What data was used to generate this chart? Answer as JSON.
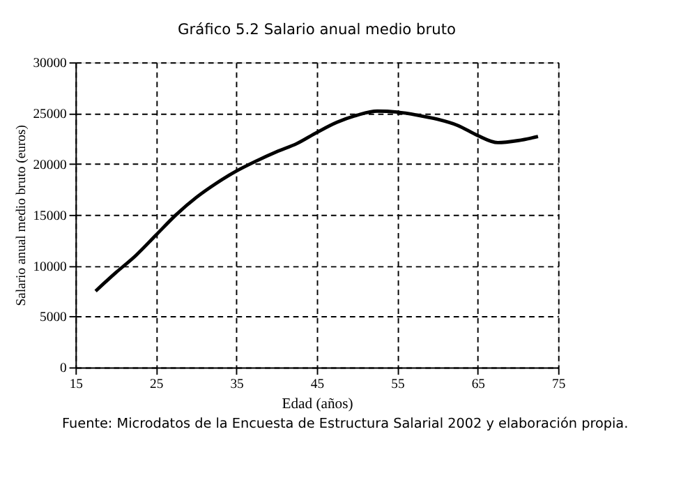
{
  "chart_data": {
    "type": "line",
    "title": "Gráfico 5.2 Salario anual medio bruto",
    "xlabel": "Edad (años)",
    "ylabel": "Salario anual medio bruto (euros)",
    "x": [
      17.5,
      20,
      22.5,
      25,
      27.5,
      30,
      32.5,
      35,
      37.5,
      40,
      42.5,
      45,
      47.5,
      50,
      52.5,
      55,
      57.5,
      60,
      62.5,
      65,
      67.5,
      70,
      72.5
    ],
    "series": [
      {
        "color": "#000000",
        "values": [
          7500,
          9300,
          11000,
          13000,
          15000,
          16700,
          18100,
          19300,
          20300,
          21200,
          22000,
          23100,
          24100,
          24800,
          25200,
          25100,
          24800,
          24400,
          23800,
          22800,
          22100,
          22300,
          22700
        ]
      }
    ],
    "xlim": [
      15,
      75
    ],
    "xticks": [
      15,
      25,
      35,
      45,
      55,
      65,
      75
    ],
    "ylim": [
      0,
      30000
    ],
    "yticks": [
      0,
      5000,
      10000,
      15000,
      20000,
      25000,
      30000
    ],
    "grid": true,
    "marker": "none",
    "line_style": "solid",
    "annotations": [
      "Fuente: Microdatos de la Encuesta de Estructura Salarial 2002 y elaboración propia."
    ]
  }
}
